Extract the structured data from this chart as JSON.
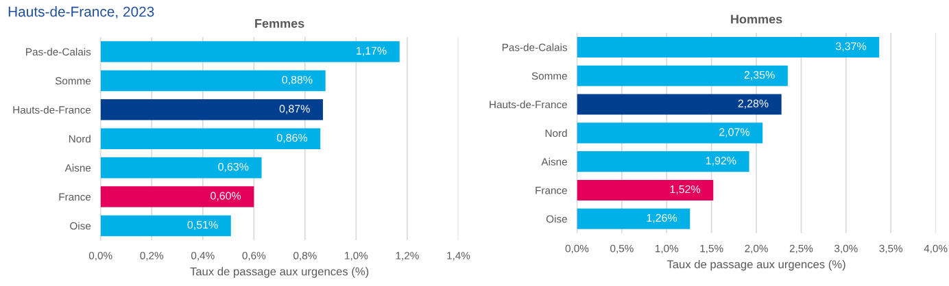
{
  "chart_data": [
    {
      "type": "bar",
      "orientation": "horizontal",
      "title": "Femmes",
      "xlabel": "Taux de passage aux urgences (%)",
      "annotations": [
        "Hauts-de-France, 2023"
      ],
      "categories": [
        "Pas-de-Calais",
        "Somme",
        "Hauts-de-France",
        "Nord",
        "Aisne",
        "France",
        "Oise"
      ],
      "values": [
        1.17,
        0.88,
        0.87,
        0.86,
        0.63,
        0.6,
        0.51
      ],
      "value_labels": [
        "1,17%",
        "0,88%",
        "0,87%",
        "0,86%",
        "0,63%",
        "0,60%",
        "0,51%"
      ],
      "colors": [
        "#00b0e6",
        "#00b0e6",
        "#003f8f",
        "#00b0e6",
        "#00b0e6",
        "#e4005a",
        "#00b0e6"
      ],
      "xlim": [
        0,
        1.4
      ],
      "xticks": [
        {
          "value": 0,
          "label": "0,0%"
        },
        {
          "value": 0.2,
          "label": "0,2%"
        },
        {
          "value": 0.4,
          "label": "0,4%"
        },
        {
          "value": 0.6,
          "label": "0,6%"
        },
        {
          "value": 0.8,
          "label": "0,8%"
        },
        {
          "value": 1.0,
          "label": "1,0%"
        },
        {
          "value": 1.2,
          "label": "1,2%"
        },
        {
          "value": 1.4,
          "label": "1,4%"
        }
      ],
      "grid": "x",
      "legend": false
    },
    {
      "type": "bar",
      "orientation": "horizontal",
      "title": "Hommes",
      "xlabel": "Taux de passage aux urgences (%)",
      "categories": [
        "Pas-de-Calais",
        "Somme",
        "Hauts-de-France",
        "Nord",
        "Aisne",
        "France",
        "Oise"
      ],
      "values": [
        3.37,
        2.35,
        2.28,
        2.07,
        1.92,
        1.52,
        1.26
      ],
      "value_labels": [
        "3,37%",
        "2,35%",
        "2,28%",
        "2,07%",
        "1,92%",
        "1,52%",
        "1,26%"
      ],
      "colors": [
        "#00b0e6",
        "#00b0e6",
        "#003f8f",
        "#00b0e6",
        "#00b0e6",
        "#e4005a",
        "#00b0e6"
      ],
      "xlim": [
        0,
        4.0
      ],
      "xticks": [
        {
          "value": 0,
          "label": "0,0%"
        },
        {
          "value": 0.5,
          "label": "0,5%"
        },
        {
          "value": 1.0,
          "label": "1,0%"
        },
        {
          "value": 1.5,
          "label": "1,5%"
        },
        {
          "value": 2.0,
          "label": "2,0%"
        },
        {
          "value": 2.5,
          "label": "2,5%"
        },
        {
          "value": 3.0,
          "label": "3,0%"
        },
        {
          "value": 3.5,
          "label": "3,5%"
        },
        {
          "value": 4.0,
          "label": "4,0%"
        }
      ],
      "grid": "x",
      "legend": false
    }
  ]
}
